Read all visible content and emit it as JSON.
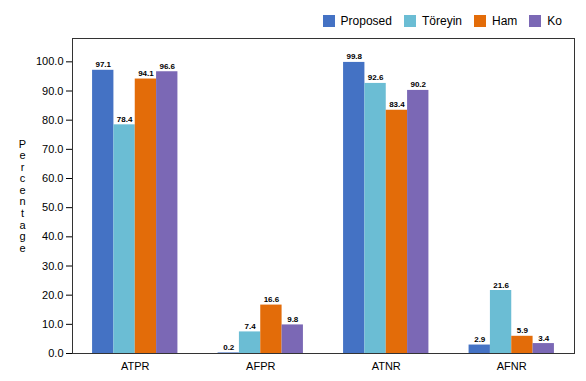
{
  "chart_data": {
    "type": "bar",
    "ylabel": "Percentage",
    "categories": [
      "ATPR",
      "AFPR",
      "ATNR",
      "AFNR"
    ],
    "series": [
      {
        "name": "Proposed",
        "color": "#4472C4",
        "values": [
          97.1,
          0.2,
          99.8,
          2.9
        ]
      },
      {
        "name": "Töreyin",
        "color": "#6BBDD4",
        "values": [
          78.4,
          7.4,
          92.6,
          21.6
        ]
      },
      {
        "name": "Ham",
        "color": "#E36C09",
        "values": [
          94.1,
          16.6,
          83.4,
          5.9
        ]
      },
      {
        "name": "Ko",
        "color": "#7B68B5",
        "values": [
          96.6,
          9.8,
          90.2,
          3.4
        ]
      }
    ],
    "ylim": [
      0,
      108
    ],
    "yticks": [
      {
        "value": 0,
        "label": "0.0"
      },
      {
        "value": 10,
        "label": "10.0"
      },
      {
        "value": 20,
        "label": "20.0"
      },
      {
        "value": 30,
        "label": "30.0"
      },
      {
        "value": 40,
        "label": "40.0"
      },
      {
        "value": 50,
        "label": "50.0"
      },
      {
        "value": 60,
        "label": "60.0"
      },
      {
        "value": 70,
        "label": "70.0"
      },
      {
        "value": 80,
        "label": "80.0"
      },
      {
        "value": 90,
        "label": "90.0"
      },
      {
        "value": 100,
        "label": "100.0"
      }
    ],
    "grid": false,
    "legend": "upper right",
    "data_labels": true
  }
}
